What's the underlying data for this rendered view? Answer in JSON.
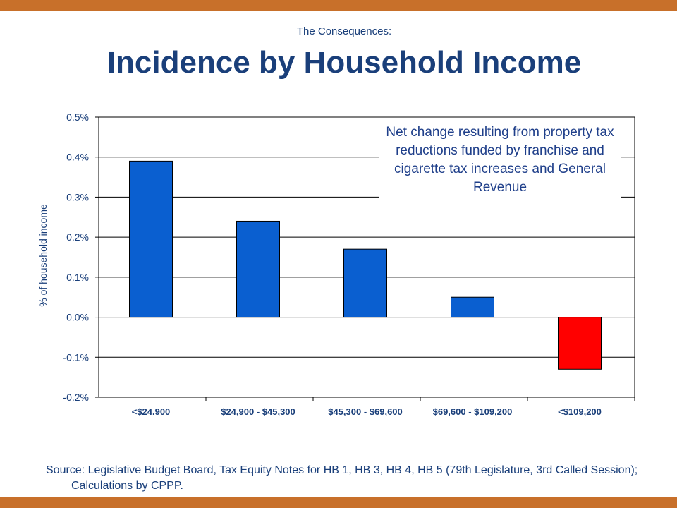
{
  "header": {
    "subtitle": "The Consequences:",
    "title": "Incidence by Household Income"
  },
  "colors": {
    "frame": "#c8702a",
    "title": "#1a3f7a",
    "bar_positive": "#0a5fd0",
    "bar_negative": "#ff0000"
  },
  "chart_data": {
    "type": "bar",
    "categories": [
      "<$24.900",
      "$24,900 - $45,300",
      "$45,300 - $69,600",
      "$69,600 - $109,200",
      "<$109,200"
    ],
    "values": [
      0.39,
      0.24,
      0.17,
      0.05,
      -0.13
    ],
    "ylabel": "% of household income",
    "ylim": [
      -0.2,
      0.5
    ],
    "yticks": [
      "0.5%",
      "0.4%",
      "0.3%",
      "0.2%",
      "0.1%",
      "0.0%",
      "-0.1%",
      "-0.2%"
    ],
    "ytick_values": [
      0.5,
      0.4,
      0.3,
      0.2,
      0.1,
      0.0,
      -0.1,
      -0.2
    ],
    "grid": true,
    "annotation": "Net change resulting from property tax reductions funded by franchise and cigarette tax increases and General Revenue"
  },
  "footer": {
    "source": "Source:  Legislative Budget Board, Tax Equity Notes for HB 1, HB 3, HB 4, HB 5 (79th Legislature, 3rd Called Session); Calculations by CPPP."
  }
}
